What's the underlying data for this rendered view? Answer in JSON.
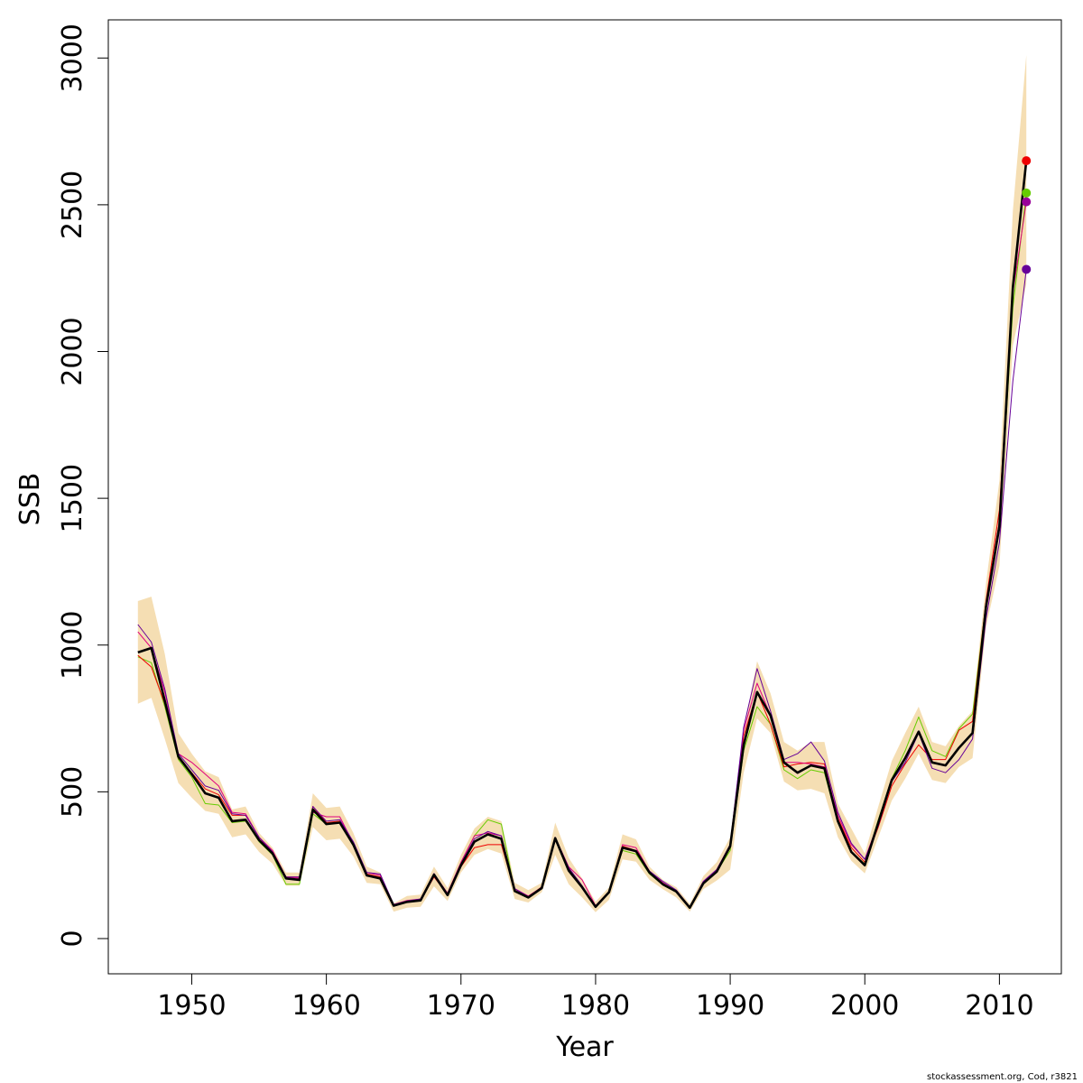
{
  "chart_data": {
    "type": "line",
    "xlabel": "Year",
    "ylabel": "SSB",
    "xlim": [
      1943.8,
      2014.6
    ],
    "ylim": [
      -120,
      3130
    ],
    "x_ticks": [
      1950,
      1960,
      1970,
      1980,
      1990,
      2000,
      2010
    ],
    "y_ticks": [
      0,
      500,
      1000,
      1500,
      2000,
      2500,
      3000
    ],
    "grid": false,
    "legend": "none",
    "years": [
      1946,
      1947,
      1948,
      1949,
      1950,
      1951,
      1952,
      1953,
      1954,
      1955,
      1956,
      1957,
      1958,
      1959,
      1960,
      1961,
      1962,
      1963,
      1964,
      1965,
      1966,
      1967,
      1968,
      1969,
      1970,
      1971,
      1972,
      1973,
      1974,
      1975,
      1976,
      1977,
      1978,
      1979,
      1980,
      1981,
      1982,
      1983,
      1984,
      1985,
      1986,
      1987,
      1988,
      1989,
      1990,
      1991,
      1992,
      1993,
      1994,
      1995,
      1996,
      1997,
      1998,
      1999,
      2000,
      2001,
      2002,
      2003,
      2004,
      2005,
      2006,
      2007,
      2008,
      2009,
      2010,
      2011,
      2012
    ],
    "confidence_band": {
      "color": "#f5deb3",
      "lower": [
        800,
        820,
        680,
        530,
        480,
        435,
        425,
        345,
        355,
        295,
        255,
        180,
        180,
        380,
        335,
        340,
        280,
        190,
        185,
        92,
        105,
        108,
        178,
        128,
        225,
        285,
        305,
        290,
        135,
        123,
        158,
        285,
        185,
        140,
        90,
        132,
        270,
        262,
        200,
        168,
        140,
        92,
        168,
        198,
        235,
        565,
        750,
        700,
        535,
        505,
        510,
        495,
        345,
        265,
        222,
        345,
        470,
        545,
        630,
        540,
        530,
        585,
        615,
        1060,
        1270,
        2020,
        2230
      ],
      "upper": [
        1150,
        1165,
        970,
        700,
        630,
        570,
        550,
        440,
        450,
        360,
        310,
        225,
        225,
        495,
        445,
        450,
        360,
        245,
        225,
        120,
        145,
        150,
        245,
        172,
        285,
        375,
        415,
        400,
        190,
        165,
        190,
        395,
        275,
        205,
        125,
        175,
        355,
        338,
        245,
        200,
        175,
        118,
        213,
        260,
        345,
        705,
        945,
        835,
        670,
        640,
        670,
        670,
        460,
        375,
        290,
        450,
        605,
        700,
        790,
        670,
        655,
        725,
        775,
        1210,
        1560,
        2480,
        3010
      ]
    },
    "series": [
      {
        "color": "#000000",
        "values": [
          975,
          990,
          810,
          620,
          560,
          495,
          480,
          400,
          405,
          335,
          290,
          205,
          200,
          440,
          390,
          395,
          320,
          215,
          205,
          112,
          125,
          130,
          218,
          148,
          250,
          330,
          355,
          340,
          162,
          140,
          172,
          342,
          232,
          175,
          108,
          158,
          310,
          298,
          225,
          185,
          160,
          105,
          188,
          228,
          315,
          660,
          840,
          760,
          600,
          565,
          590,
          580,
          400,
          295,
          250,
          395,
          540,
          615,
          705,
          600,
          590,
          650,
          700,
          1130,
          1405,
          2220,
          2650
        ]
      },
      {
        "color": "#66cc00",
        "values": [
          960,
          940,
          790,
          610,
          550,
          460,
          455,
          395,
          400,
          330,
          285,
          185,
          185,
          425,
          390,
          395,
          315,
          215,
          205,
          112,
          125,
          130,
          218,
          148,
          260,
          350,
          405,
          390,
          162,
          140,
          172,
          342,
          232,
          175,
          108,
          158,
          300,
          288,
          220,
          183,
          158,
          103,
          188,
          228,
          300,
          640,
          790,
          730,
          575,
          545,
          575,
          565,
          395,
          295,
          255,
          405,
          545,
          640,
          755,
          640,
          620,
          715,
          765,
          1145,
          1395,
          2150,
          2540
        ]
      },
      {
        "color": "#ee0000",
        "values": [
          965,
          925,
          800,
          615,
          565,
          510,
          490,
          420,
          420,
          345,
          290,
          210,
          210,
          450,
          395,
          400,
          325,
          220,
          210,
          116,
          125,
          130,
          210,
          150,
          245,
          310,
          320,
          320,
          165,
          142,
          176,
          340,
          240,
          178,
          110,
          158,
          315,
          300,
          228,
          190,
          160,
          106,
          190,
          230,
          310,
          690,
          840,
          730,
          585,
          595,
          600,
          595,
          410,
          310,
          260,
          380,
          520,
          595,
          660,
          610,
          610,
          710,
          740,
          1150,
          1460,
          2210,
          2650
        ]
      },
      {
        "color": "#e0007f",
        "values": [
          1045,
          990,
          840,
          630,
          600,
          560,
          520,
          430,
          425,
          345,
          300,
          210,
          205,
          430,
          415,
          415,
          325,
          225,
          215,
          116,
          130,
          135,
          220,
          155,
          260,
          350,
          360,
          350,
          170,
          145,
          175,
          345,
          245,
          200,
          112,
          160,
          320,
          310,
          230,
          190,
          160,
          106,
          195,
          235,
          320,
          710,
          870,
          760,
          600,
          600,
          595,
          585,
          420,
          320,
          270,
          395,
          535,
          610,
          700,
          600,
          590,
          650,
          700,
          1140,
          1420,
          2200,
          2510
        ]
      },
      {
        "color": "#660099",
        "values": [
          1070,
          1010,
          850,
          630,
          575,
          520,
          505,
          425,
          420,
          345,
          295,
          210,
          210,
          450,
          400,
          405,
          330,
          225,
          220,
          116,
          128,
          135,
          222,
          152,
          255,
          340,
          365,
          350,
          170,
          143,
          172,
          345,
          242,
          180,
          110,
          160,
          312,
          300,
          230,
          195,
          165,
          108,
          195,
          235,
          320,
          720,
          920,
          775,
          610,
          630,
          670,
          605,
          430,
          325,
          270,
          385,
          535,
          600,
          700,
          580,
          565,
          610,
          680,
          1090,
          1350,
          1900,
          2280
        ]
      }
    ],
    "end_points": [
      {
        "x": 2012,
        "y": 2650,
        "color": "#ee0000"
      },
      {
        "x": 2012,
        "y": 2540,
        "color": "#66cc00"
      },
      {
        "x": 2012,
        "y": 2510,
        "color": "#990099"
      },
      {
        "x": 2012,
        "y": 2280,
        "color": "#660099"
      }
    ]
  },
  "credit": "stockassessment.org, Cod, r3821"
}
